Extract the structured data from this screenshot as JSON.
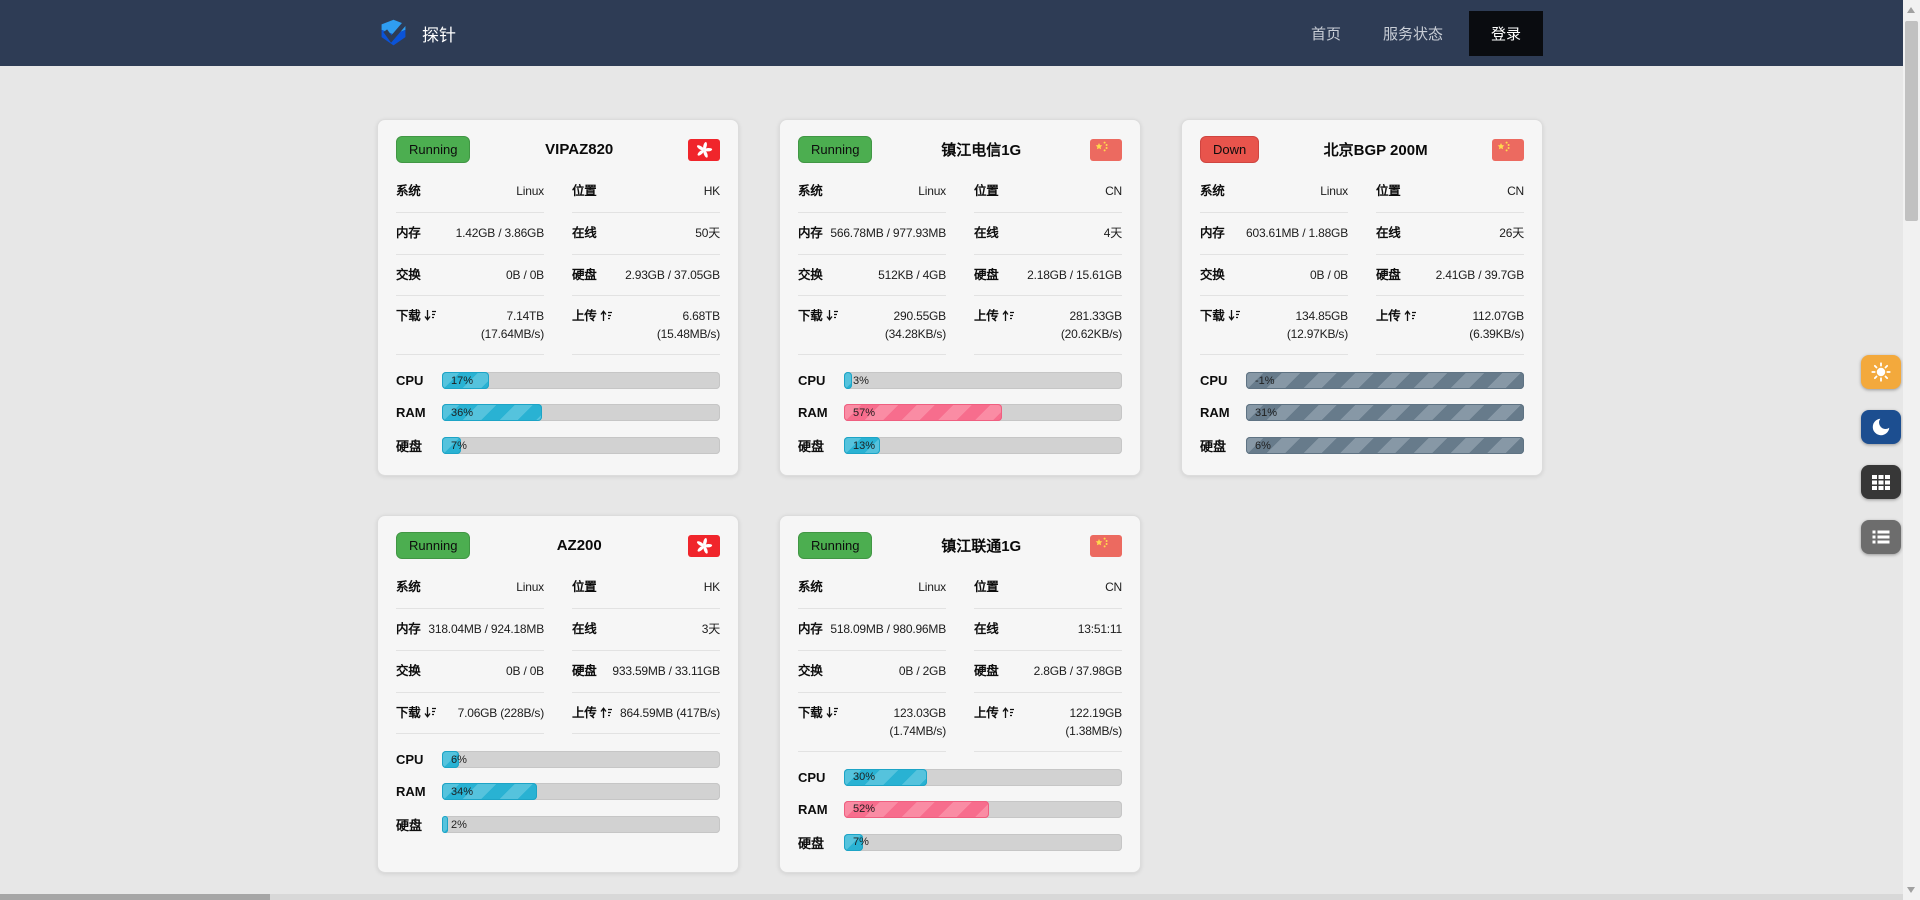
{
  "navbar": {
    "brand": "探针",
    "items": [
      {
        "label": "首页",
        "active": false
      },
      {
        "label": "服务状态",
        "active": false
      },
      {
        "label": "登录",
        "active": true
      }
    ]
  },
  "field_labels": {
    "system": "系统",
    "location": "位置",
    "memory": "内存",
    "uptime": "在线",
    "swap": "交换",
    "disk": "硬盘",
    "download": "下载",
    "upload": "上传"
  },
  "bar_labels": {
    "cpu": "CPU",
    "ram": "RAM",
    "disk": "硬盘"
  },
  "servers": [
    {
      "name": "VIPAZ820",
      "status": "Running",
      "status_type": "running",
      "flag": "hk",
      "system": "Linux",
      "location": "HK",
      "memory": "1.42GB / 3.86GB",
      "uptime": "50天",
      "swap": "0B / 0B",
      "disk": "2.93GB / 37.05GB",
      "download": "7.14TB (17.64MB/s)",
      "upload": "6.68TB (15.48MB/s)",
      "bars": {
        "cpu": {
          "value": "17%",
          "fill_pct": 17,
          "color": "cyan"
        },
        "ram": {
          "value": "36%",
          "fill_pct": 36,
          "color": "cyan"
        },
        "disk": {
          "value": "7%",
          "fill_pct": 7,
          "color": "cyan"
        }
      }
    },
    {
      "name": "镇江电信1G",
      "status": "Running",
      "status_type": "running",
      "flag": "cn",
      "system": "Linux",
      "location": "CN",
      "memory": "566.78MB / 977.93MB",
      "uptime": "4天",
      "swap": "512KB / 4GB",
      "disk": "2.18GB / 15.61GB",
      "download": "290.55GB (34.28KB/s)",
      "upload": "281.33GB (20.62KB/s)",
      "bars": {
        "cpu": {
          "value": "3%",
          "fill_pct": 3,
          "color": "cyan"
        },
        "ram": {
          "value": "57%",
          "fill_pct": 57,
          "color": "pink"
        },
        "disk": {
          "value": "13%",
          "fill_pct": 13,
          "color": "cyan"
        }
      }
    },
    {
      "name": "北京BGP 200M",
      "status": "Down",
      "status_type": "down",
      "flag": "cn",
      "system": "Linux",
      "location": "CN",
      "memory": "603.61MB / 1.88GB",
      "uptime": "26天",
      "swap": "0B / 0B",
      "disk": "2.41GB / 39.7GB",
      "download": "134.85GB (12.97KB/s)",
      "upload": "112.07GB (6.39KB/s)",
      "bars": {
        "cpu": {
          "value": "-1%",
          "fill_pct": 100,
          "color": "slate"
        },
        "ram": {
          "value": "31%",
          "fill_pct": 100,
          "color": "slate"
        },
        "disk": {
          "value": "6%",
          "fill_pct": 100,
          "color": "slate"
        }
      }
    },
    {
      "name": "AZ200",
      "status": "Running",
      "status_type": "running",
      "flag": "hk",
      "system": "Linux",
      "location": "HK",
      "memory": "318.04MB / 924.18MB",
      "uptime": "3天",
      "swap": "0B / 0B",
      "disk": "933.59MB / 33.11GB",
      "download": "7.06GB (228B/s)",
      "upload": "864.59MB (417B/s)",
      "bars": {
        "cpu": {
          "value": "6%",
          "fill_pct": 6,
          "color": "cyan"
        },
        "ram": {
          "value": "34%",
          "fill_pct": 34,
          "color": "cyan"
        },
        "disk": {
          "value": "2%",
          "fill_pct": 2,
          "color": "cyan"
        }
      }
    },
    {
      "name": "镇江联通1G",
      "status": "Running",
      "status_type": "running",
      "flag": "cn",
      "system": "Linux",
      "location": "CN",
      "memory": "518.09MB / 980.96MB",
      "uptime": "13:51:11",
      "swap": "0B / 2GB",
      "disk": "2.8GB / 37.98GB",
      "download": "123.03GB (1.74MB/s)",
      "upload": "122.19GB (1.38MB/s)",
      "bars": {
        "cpu": {
          "value": "30%",
          "fill_pct": 30,
          "color": "cyan"
        },
        "ram": {
          "value": "52%",
          "fill_pct": 52,
          "color": "pink"
        },
        "disk": {
          "value": "7%",
          "fill_pct": 7,
          "color": "cyan"
        }
      }
    }
  ],
  "side_buttons": [
    {
      "name": "light-theme",
      "icon": "sun-icon",
      "color": "#f3a93c"
    },
    {
      "name": "dark-theme",
      "icon": "moon-icon",
      "color": "#1c4e90"
    },
    {
      "name": "grid-view",
      "icon": "grid-icon",
      "color": "#373737"
    },
    {
      "name": "list-view",
      "icon": "list-icon",
      "color": "#6d6d6d"
    }
  ],
  "colors": {
    "navbar_bg": "#2e3c55",
    "running_badge": "#4cae50",
    "down_badge": "#e8544c",
    "bar_cyan": "#29b2d3",
    "bar_pink": "#f76d8d",
    "bar_slate": "#677b8b"
  }
}
